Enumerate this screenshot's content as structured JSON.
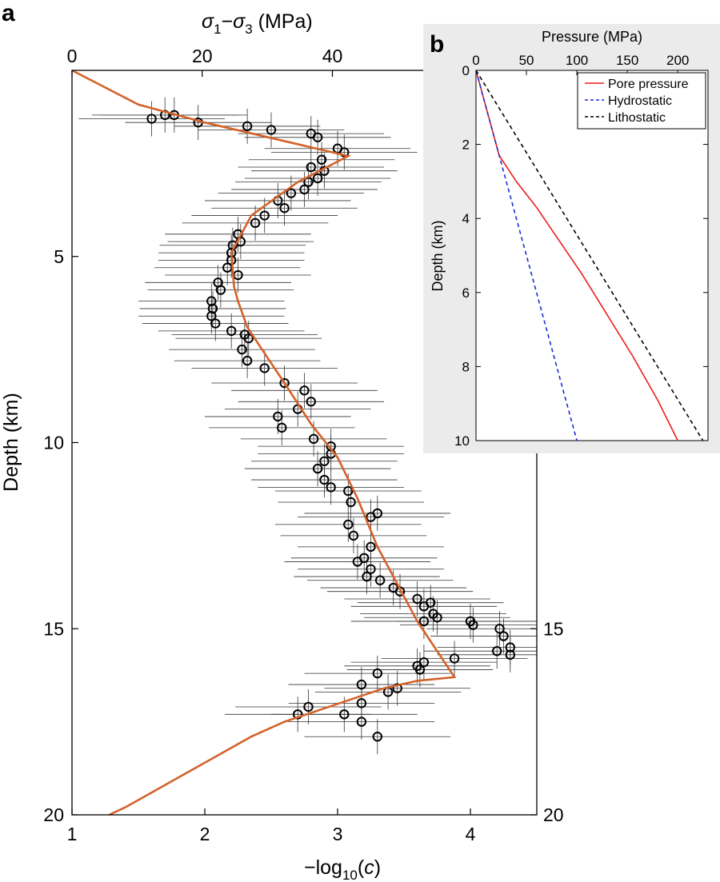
{
  "figure": {
    "panel_a_letter": "a",
    "panel_b_letter": "b"
  },
  "chart_data": [
    {
      "panel": "a",
      "type": "scatter",
      "xlabel": "−log10(c)",
      "xlabel_parts": {
        "prefix": "−log",
        "sub": "10",
        "open": "(",
        "var": "c",
        "close": ")"
      },
      "x2label_parts": {
        "s1": "σ",
        "sub1": "1",
        "dash": "−",
        "s3": "σ",
        "sub3": "3",
        "unit": " (MPa)"
      },
      "ylabel": "Depth (km)",
      "xlim": [
        1,
        4.5
      ],
      "ylim": [
        20,
        0
      ],
      "x2lim": [
        0,
        71.4
      ],
      "xticks": [
        1,
        2,
        3,
        4
      ],
      "xtick_labels": [
        "1",
        "2",
        "3",
        "4"
      ],
      "yticks": [
        5,
        10,
        15,
        20
      ],
      "ytick_labels": [
        "5",
        "10",
        "15",
        "20"
      ],
      "x2ticks": [
        0,
        20,
        40
      ],
      "x2tick_labels": [
        "0",
        "20",
        "40"
      ],
      "y2ticks": [
        15,
        20
      ],
      "y2tick_labels": [
        "15",
        "20"
      ],
      "grid": false,
      "colors": {
        "points": "#000000",
        "errorbars": "#333333",
        "fit": "#d4622a"
      },
      "series": [
        {
          "marker": "open-circle",
          "x_error": 0.55,
          "points": [
            [
              1.6,
              1.3
            ],
            [
              1.7,
              1.2
            ],
            [
              1.77,
              1.2
            ],
            [
              1.95,
              1.4
            ],
            [
              2.32,
              1.5
            ],
            [
              2.5,
              1.6
            ],
            [
              2.8,
              1.7
            ],
            [
              2.85,
              1.8
            ],
            [
              3.0,
              2.1
            ],
            [
              3.05,
              2.2
            ],
            [
              2.88,
              2.4
            ],
            [
              2.8,
              2.6
            ],
            [
              2.9,
              2.7
            ],
            [
              2.85,
              2.9
            ],
            [
              2.78,
              3.0
            ],
            [
              2.75,
              3.2
            ],
            [
              2.65,
              3.3
            ],
            [
              2.55,
              3.5
            ],
            [
              2.6,
              3.7
            ],
            [
              2.45,
              3.9
            ],
            [
              2.38,
              4.1
            ],
            [
              2.25,
              4.4
            ],
            [
              2.27,
              4.6
            ],
            [
              2.21,
              4.7
            ],
            [
              2.2,
              4.9
            ],
            [
              2.2,
              5.1
            ],
            [
              2.17,
              5.3
            ],
            [
              2.25,
              5.5
            ],
            [
              2.1,
              5.7
            ],
            [
              2.12,
              5.9
            ],
            [
              2.05,
              6.2
            ],
            [
              2.06,
              6.4
            ],
            [
              2.05,
              6.6
            ],
            [
              2.08,
              6.8
            ],
            [
              2.2,
              7.0
            ],
            [
              2.3,
              7.1
            ],
            [
              2.33,
              7.2
            ],
            [
              2.28,
              7.5
            ],
            [
              2.32,
              7.8
            ],
            [
              2.45,
              8.0
            ],
            [
              2.6,
              8.4
            ],
            [
              2.75,
              8.6
            ],
            [
              2.8,
              8.9
            ],
            [
              2.7,
              9.1
            ],
            [
              2.55,
              9.3
            ],
            [
              2.58,
              9.6
            ],
            [
              2.82,
              9.9
            ],
            [
              2.95,
              10.1
            ],
            [
              2.95,
              10.3
            ],
            [
              2.9,
              10.5
            ],
            [
              2.85,
              10.7
            ],
            [
              2.9,
              11.0
            ],
            [
              2.95,
              11.2
            ],
            [
              3.08,
              11.3
            ],
            [
              3.1,
              11.6
            ],
            [
              3.3,
              11.9
            ],
            [
              3.25,
              12.0
            ],
            [
              3.08,
              12.2
            ],
            [
              3.12,
              12.5
            ],
            [
              3.25,
              12.8
            ],
            [
              3.2,
              13.1
            ],
            [
              3.15,
              13.2
            ],
            [
              3.25,
              13.4
            ],
            [
              3.22,
              13.6
            ],
            [
              3.32,
              13.7
            ],
            [
              3.42,
              13.9
            ],
            [
              3.47,
              14.0
            ],
            [
              3.6,
              14.2
            ],
            [
              3.7,
              14.3
            ],
            [
              3.65,
              14.4
            ],
            [
              3.72,
              14.6
            ],
            [
              3.75,
              14.7
            ],
            [
              3.65,
              14.8
            ],
            [
              4.0,
              14.8
            ],
            [
              4.02,
              14.9
            ],
            [
              4.22,
              15.0
            ],
            [
              4.25,
              15.2
            ],
            [
              4.3,
              15.5
            ],
            [
              4.2,
              15.6
            ],
            [
              4.3,
              15.7
            ],
            [
              3.88,
              15.8
            ],
            [
              3.65,
              15.9
            ],
            [
              3.6,
              16.0
            ],
            [
              3.62,
              16.1
            ],
            [
              3.3,
              16.2
            ],
            [
              3.18,
              16.5
            ],
            [
              3.45,
              16.6
            ],
            [
              3.38,
              16.7
            ],
            [
              3.18,
              17.0
            ],
            [
              2.78,
              17.1
            ],
            [
              2.7,
              17.3
            ],
            [
              3.05,
              17.3
            ],
            [
              3.18,
              17.5
            ],
            [
              3.3,
              17.9
            ]
          ]
        },
        {
          "type": "line",
          "points": [
            [
              1.0,
              0.0
            ],
            [
              1.5,
              0.92
            ],
            [
              2.0,
              1.4
            ],
            [
              3.08,
              2.3
            ],
            [
              2.7,
              3.0
            ],
            [
              2.35,
              3.9
            ],
            [
              2.2,
              4.9
            ],
            [
              2.22,
              5.8
            ],
            [
              2.25,
              6.2
            ],
            [
              2.32,
              6.9
            ],
            [
              2.45,
              7.6
            ],
            [
              2.6,
              8.4
            ],
            [
              2.8,
              9.5
            ],
            [
              3.0,
              10.4
            ],
            [
              3.15,
              11.5
            ],
            [
              3.3,
              12.8
            ],
            [
              3.45,
              13.8
            ],
            [
              3.6,
              14.8
            ],
            [
              3.88,
              16.3
            ],
            [
              3.6,
              16.4
            ],
            [
              3.35,
              16.6
            ],
            [
              3.1,
              16.9
            ],
            [
              2.85,
              17.2
            ],
            [
              2.6,
              17.5
            ],
            [
              2.35,
              17.9
            ],
            [
              2.1,
              18.4
            ],
            [
              1.85,
              18.9
            ],
            [
              1.6,
              19.4
            ],
            [
              1.4,
              19.8
            ],
            [
              1.28,
              20.0
            ]
          ]
        }
      ]
    },
    {
      "panel": "b",
      "type": "line",
      "title": "Pressure (MPa)",
      "ylabel": "Depth (km)",
      "xlim": [
        0,
        230
      ],
      "ylim": [
        10,
        0
      ],
      "xticks": [
        0,
        50,
        100,
        150,
        200
      ],
      "xtick_labels": [
        "0",
        "50",
        "100",
        "150",
        "200"
      ],
      "yticks": [
        0,
        2,
        4,
        6,
        8,
        10
      ],
      "ytick_labels": [
        "0",
        "2",
        "4",
        "6",
        "8",
        "10"
      ],
      "grid": false,
      "legend": "top-right",
      "background": "#ebebeb",
      "series": [
        {
          "name": "Pore pressure",
          "color": "#ee1c1c",
          "style": "solid",
          "x": [
            0,
            10,
            23,
            40,
            60,
            80,
            105,
            130,
            155,
            180,
            200
          ],
          "y": [
            0,
            1.0,
            2.3,
            3.0,
            3.7,
            4.5,
            5.5,
            6.6,
            7.7,
            8.9,
            10
          ]
        },
        {
          "name": "Hydrostatic",
          "color": "#1a2bd6",
          "style": "dashed",
          "x": [
            0,
            100
          ],
          "y": [
            0,
            10
          ]
        },
        {
          "name": "Lithostatic",
          "color": "#000000",
          "style": "dashed",
          "x": [
            0,
            225
          ],
          "y": [
            0,
            10
          ]
        }
      ]
    }
  ]
}
